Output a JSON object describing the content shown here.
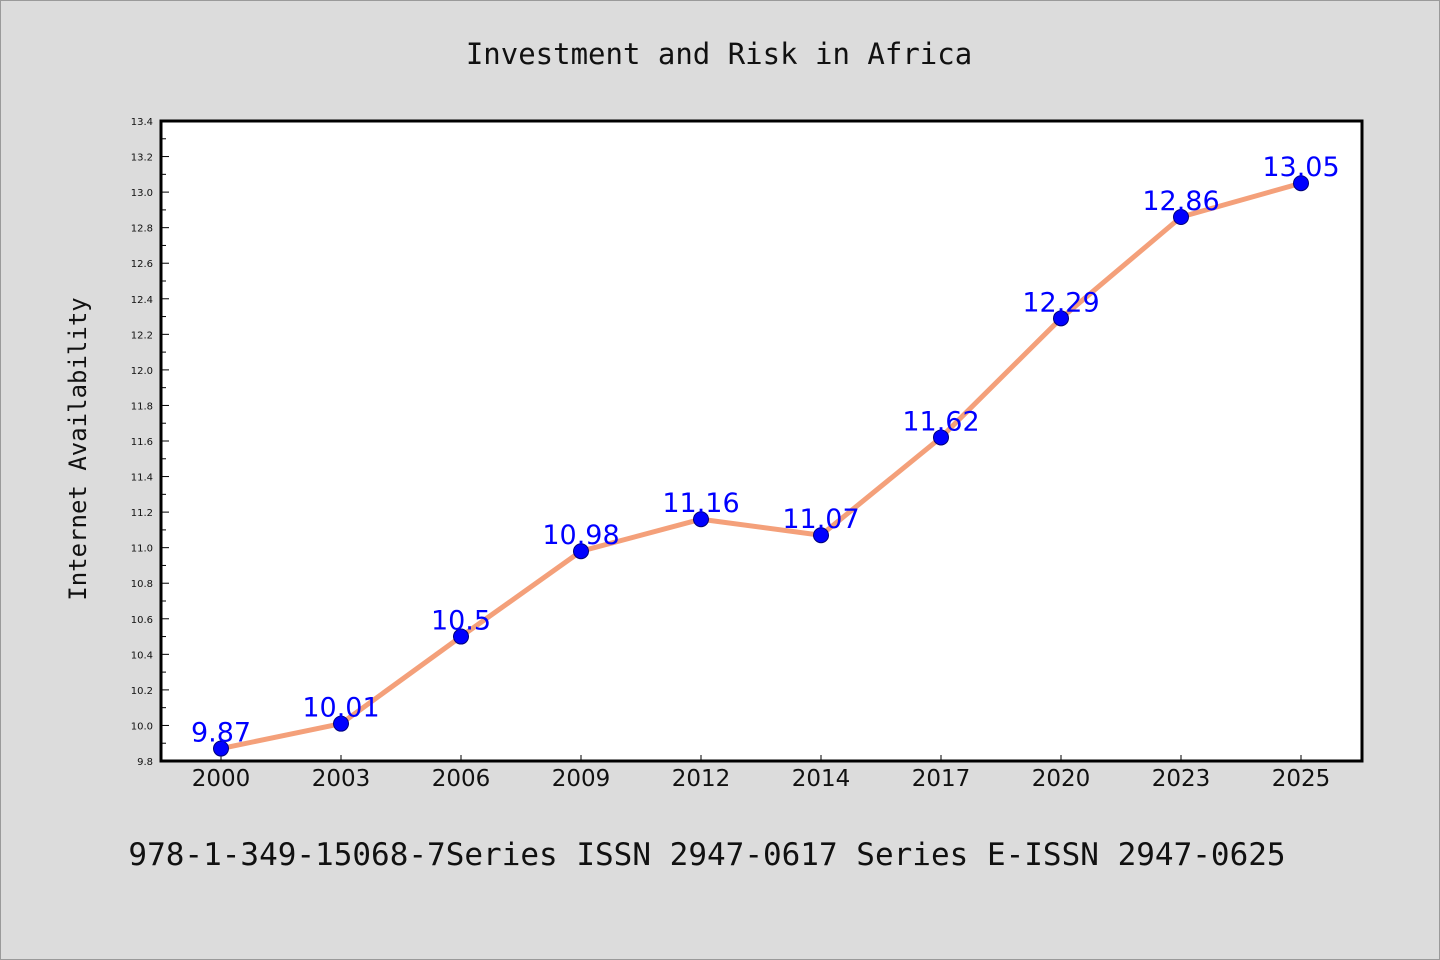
{
  "chart_data": {
    "type": "line",
    "title": "Investment and Risk in Africa",
    "xlabel": "",
    "ylabel": "Internet Availability",
    "categories": [
      "2000",
      "2003",
      "2006",
      "2009",
      "2012",
      "2014",
      "2017",
      "2020",
      "2023",
      "2025"
    ],
    "series": [
      {
        "values": [
          9.87,
          10.01,
          10.5,
          10.98,
          11.16,
          11.07,
          11.62,
          12.29,
          12.86,
          13.05
        ],
        "data_labels": [
          "9.87",
          "10.01",
          "10.5",
          "10.98",
          "11.16",
          "11.07",
          "11.62",
          "12.29",
          "12.86",
          "13.05"
        ],
        "line_color": "#f4a07a",
        "marker_color": "#0000ff"
      }
    ],
    "ylim": [
      9.8,
      13.4
    ],
    "yticks": [
      "9.8",
      "10.0",
      "10.2",
      "10.4",
      "10.6",
      "10.8",
      "11.0",
      "11.2",
      "11.4",
      "11.6",
      "11.8",
      "12.0",
      "12.2",
      "12.4",
      "12.6",
      "12.8",
      "13.0",
      "13.2",
      "13.4"
    ],
    "grid": false,
    "legend": "none",
    "data_label_color": "#0000ff",
    "background_color": "#dcdcdc",
    "plot_background_color": "#ffffff"
  },
  "footer": {
    "text": "978-1-349-15068-7Series ISSN 2947-0617 Series E-ISSN 2947-0625"
  }
}
